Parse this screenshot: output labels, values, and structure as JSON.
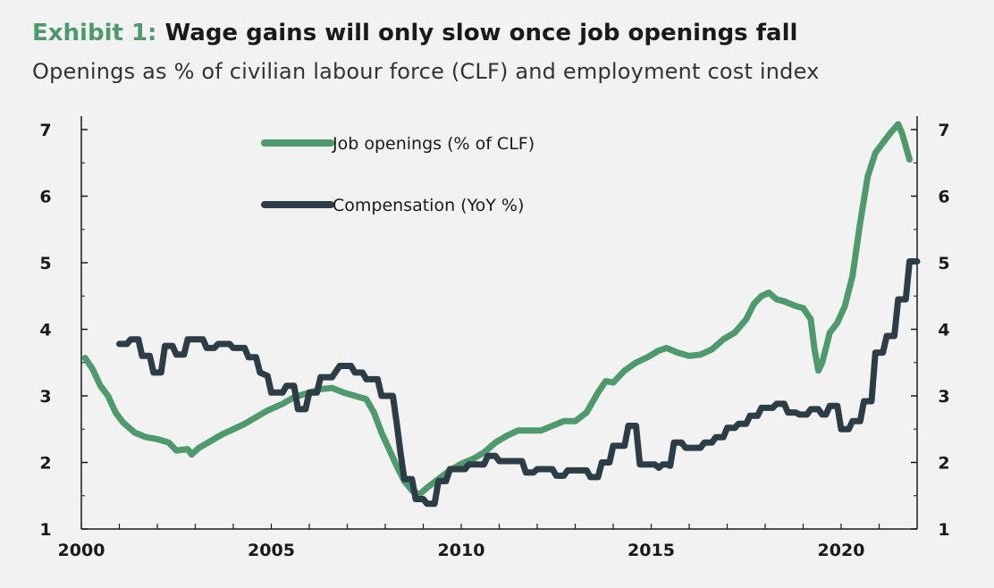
{
  "header": {
    "exhibit": "Exhibit 1:",
    "title": "Wage gains will only slow once job openings fall",
    "subtitle": "Openings as % of civilian labour force (CLF) and employment cost index"
  },
  "colors": {
    "background": "#f2f2f2",
    "openings": "#4e9a6c",
    "compensation": "#2c3d46",
    "exhibit_label": "#4e9a6c",
    "axis": "#1a1a1a"
  },
  "chart_data": {
    "type": "line",
    "title": "Wage gains will only slow once job openings fall",
    "subtitle": "Openings as % of civilian labour force (CLF) and employment cost index",
    "xlabel": "",
    "ylabel": "",
    "xlim": [
      2000,
      2022
    ],
    "ylim": [
      1,
      7
    ],
    "x_ticks": [
      "2000",
      "2005",
      "2010",
      "2015",
      "2020"
    ],
    "y_ticks_left": [
      "1",
      "2",
      "3",
      "4",
      "5",
      "6",
      "7"
    ],
    "y_ticks_right": [
      "1",
      "2",
      "3",
      "4",
      "5",
      "6",
      "7"
    ],
    "grid": false,
    "legend_position": "top-center",
    "series": [
      {
        "name": "Job openings (% of CLF)",
        "color": "#4e9a6c",
        "points": [
          [
            2000.1,
            3.57
          ],
          [
            2000.3,
            3.4
          ],
          [
            2000.5,
            3.15
          ],
          [
            2000.7,
            3.0
          ],
          [
            2000.9,
            2.75
          ],
          [
            2001.1,
            2.6
          ],
          [
            2001.4,
            2.45
          ],
          [
            2001.7,
            2.38
          ],
          [
            2002.0,
            2.35
          ],
          [
            2002.3,
            2.3
          ],
          [
            2002.5,
            2.18
          ],
          [
            2002.8,
            2.2
          ],
          [
            2002.9,
            2.12
          ],
          [
            2003.1,
            2.22
          ],
          [
            2003.4,
            2.32
          ],
          [
            2003.7,
            2.42
          ],
          [
            2004.0,
            2.5
          ],
          [
            2004.3,
            2.58
          ],
          [
            2004.6,
            2.68
          ],
          [
            2004.9,
            2.78
          ],
          [
            2005.3,
            2.88
          ],
          [
            2005.6,
            2.98
          ],
          [
            2006.0,
            3.05
          ],
          [
            2006.3,
            3.1
          ],
          [
            2006.6,
            3.12
          ],
          [
            2006.9,
            3.05
          ],
          [
            2007.2,
            3.0
          ],
          [
            2007.5,
            2.95
          ],
          [
            2007.7,
            2.75
          ],
          [
            2007.9,
            2.45
          ],
          [
            2008.1,
            2.2
          ],
          [
            2008.3,
            1.95
          ],
          [
            2008.5,
            1.72
          ],
          [
            2008.7,
            1.58
          ],
          [
            2008.9,
            1.52
          ],
          [
            2009.1,
            1.62
          ],
          [
            2009.4,
            1.75
          ],
          [
            2009.7,
            1.88
          ],
          [
            2010.0,
            1.98
          ],
          [
            2010.3,
            2.05
          ],
          [
            2010.6,
            2.15
          ],
          [
            2010.9,
            2.3
          ],
          [
            2011.2,
            2.4
          ],
          [
            2011.5,
            2.48
          ],
          [
            2011.8,
            2.48
          ],
          [
            2012.1,
            2.48
          ],
          [
            2012.4,
            2.55
          ],
          [
            2012.7,
            2.62
          ],
          [
            2013.0,
            2.62
          ],
          [
            2013.3,
            2.75
          ],
          [
            2013.6,
            3.05
          ],
          [
            2013.8,
            3.22
          ],
          [
            2014.0,
            3.2
          ],
          [
            2014.3,
            3.38
          ],
          [
            2014.6,
            3.5
          ],
          [
            2014.9,
            3.58
          ],
          [
            2015.2,
            3.68
          ],
          [
            2015.4,
            3.72
          ],
          [
            2015.7,
            3.65
          ],
          [
            2016.0,
            3.6
          ],
          [
            2016.3,
            3.62
          ],
          [
            2016.6,
            3.7
          ],
          [
            2016.9,
            3.85
          ],
          [
            2017.2,
            3.95
          ],
          [
            2017.5,
            4.15
          ],
          [
            2017.7,
            4.38
          ],
          [
            2017.9,
            4.5
          ],
          [
            2018.1,
            4.55
          ],
          [
            2018.3,
            4.45
          ],
          [
            2018.5,
            4.42
          ],
          [
            2018.8,
            4.35
          ],
          [
            2019.0,
            4.32
          ],
          [
            2019.2,
            4.15
          ],
          [
            2019.3,
            3.7
          ],
          [
            2019.4,
            3.38
          ],
          [
            2019.5,
            3.5
          ],
          [
            2019.7,
            3.95
          ],
          [
            2019.9,
            4.1
          ],
          [
            2020.1,
            4.35
          ],
          [
            2020.3,
            4.8
          ],
          [
            2020.5,
            5.6
          ],
          [
            2020.7,
            6.3
          ],
          [
            2020.9,
            6.65
          ],
          [
            2021.1,
            6.8
          ],
          [
            2021.3,
            6.95
          ],
          [
            2021.5,
            7.08
          ],
          [
            2021.6,
            6.95
          ],
          [
            2021.7,
            6.75
          ],
          [
            2021.8,
            6.55
          ]
        ]
      },
      {
        "name": "Compensation (YoY %)",
        "color": "#2c3d46",
        "points": [
          [
            2001.0,
            3.78
          ],
          [
            2001.2,
            3.78
          ],
          [
            2001.3,
            3.85
          ],
          [
            2001.5,
            3.85
          ],
          [
            2001.6,
            3.6
          ],
          [
            2001.8,
            3.6
          ],
          [
            2001.9,
            3.35
          ],
          [
            2002.1,
            3.35
          ],
          [
            2002.2,
            3.75
          ],
          [
            2002.4,
            3.75
          ],
          [
            2002.5,
            3.62
          ],
          [
            2002.7,
            3.62
          ],
          [
            2002.8,
            3.85
          ],
          [
            2003.2,
            3.85
          ],
          [
            2003.3,
            3.72
          ],
          [
            2003.5,
            3.72
          ],
          [
            2003.6,
            3.78
          ],
          [
            2003.9,
            3.78
          ],
          [
            2004.0,
            3.72
          ],
          [
            2004.3,
            3.72
          ],
          [
            2004.4,
            3.58
          ],
          [
            2004.6,
            3.58
          ],
          [
            2004.7,
            3.35
          ],
          [
            2004.9,
            3.3
          ],
          [
            2005.0,
            3.05
          ],
          [
            2005.3,
            3.05
          ],
          [
            2005.4,
            3.15
          ],
          [
            2005.6,
            3.15
          ],
          [
            2005.7,
            2.8
          ],
          [
            2005.9,
            2.8
          ],
          [
            2006.0,
            3.05
          ],
          [
            2006.2,
            3.05
          ],
          [
            2006.3,
            3.28
          ],
          [
            2006.6,
            3.28
          ],
          [
            2006.8,
            3.45
          ],
          [
            2007.1,
            3.45
          ],
          [
            2007.2,
            3.35
          ],
          [
            2007.4,
            3.35
          ],
          [
            2007.5,
            3.25
          ],
          [
            2007.8,
            3.25
          ],
          [
            2007.9,
            3.0
          ],
          [
            2008.2,
            3.0
          ],
          [
            2008.3,
            2.6
          ],
          [
            2008.4,
            2.15
          ],
          [
            2008.5,
            1.75
          ],
          [
            2008.7,
            1.75
          ],
          [
            2008.8,
            1.45
          ],
          [
            2009.0,
            1.45
          ],
          [
            2009.1,
            1.38
          ],
          [
            2009.3,
            1.38
          ],
          [
            2009.4,
            1.72
          ],
          [
            2009.6,
            1.72
          ],
          [
            2009.7,
            1.9
          ],
          [
            2010.1,
            1.9
          ],
          [
            2010.2,
            1.97
          ],
          [
            2010.6,
            1.97
          ],
          [
            2010.7,
            2.1
          ],
          [
            2010.9,
            2.1
          ],
          [
            2011.0,
            2.02
          ],
          [
            2011.6,
            2.02
          ],
          [
            2011.7,
            1.85
          ],
          [
            2011.9,
            1.85
          ],
          [
            2012.0,
            1.9
          ],
          [
            2012.4,
            1.9
          ],
          [
            2012.5,
            1.8
          ],
          [
            2012.7,
            1.8
          ],
          [
            2012.8,
            1.88
          ],
          [
            2013.3,
            1.88
          ],
          [
            2013.4,
            1.78
          ],
          [
            2013.6,
            1.78
          ],
          [
            2013.7,
            2.0
          ],
          [
            2013.9,
            2.0
          ],
          [
            2014.0,
            2.25
          ],
          [
            2014.3,
            2.25
          ],
          [
            2014.4,
            2.55
          ],
          [
            2014.6,
            2.55
          ],
          [
            2014.7,
            1.97
          ],
          [
            2015.1,
            1.97
          ],
          [
            2015.2,
            1.92
          ],
          [
            2015.3,
            1.97
          ],
          [
            2015.4,
            1.97
          ],
          [
            2015.5,
            1.95
          ],
          [
            2015.6,
            2.3
          ],
          [
            2015.8,
            2.3
          ],
          [
            2015.9,
            2.22
          ],
          [
            2016.3,
            2.22
          ],
          [
            2016.4,
            2.3
          ],
          [
            2016.6,
            2.3
          ],
          [
            2016.7,
            2.38
          ],
          [
            2016.9,
            2.38
          ],
          [
            2017.0,
            2.52
          ],
          [
            2017.2,
            2.52
          ],
          [
            2017.3,
            2.58
          ],
          [
            2017.5,
            2.58
          ],
          [
            2017.6,
            2.7
          ],
          [
            2017.8,
            2.7
          ],
          [
            2017.9,
            2.82
          ],
          [
            2018.2,
            2.82
          ],
          [
            2018.3,
            2.88
          ],
          [
            2018.5,
            2.88
          ],
          [
            2018.6,
            2.75
          ],
          [
            2018.8,
            2.75
          ],
          [
            2018.9,
            2.72
          ],
          [
            2019.1,
            2.72
          ],
          [
            2019.2,
            2.8
          ],
          [
            2019.4,
            2.8
          ],
          [
            2019.5,
            2.72
          ],
          [
            2019.6,
            2.72
          ],
          [
            2019.7,
            2.85
          ],
          [
            2019.9,
            2.85
          ],
          [
            2020.0,
            2.5
          ],
          [
            2020.2,
            2.5
          ],
          [
            2020.3,
            2.62
          ],
          [
            2020.5,
            2.62
          ],
          [
            2020.6,
            2.92
          ],
          [
            2020.8,
            2.92
          ],
          [
            2020.9,
            3.65
          ],
          [
            2021.1,
            3.65
          ],
          [
            2021.2,
            3.9
          ],
          [
            2021.4,
            3.9
          ],
          [
            2021.5,
            4.45
          ],
          [
            2021.7,
            4.45
          ],
          [
            2021.8,
            5.02
          ],
          [
            2022.0,
            5.02
          ]
        ]
      }
    ]
  }
}
